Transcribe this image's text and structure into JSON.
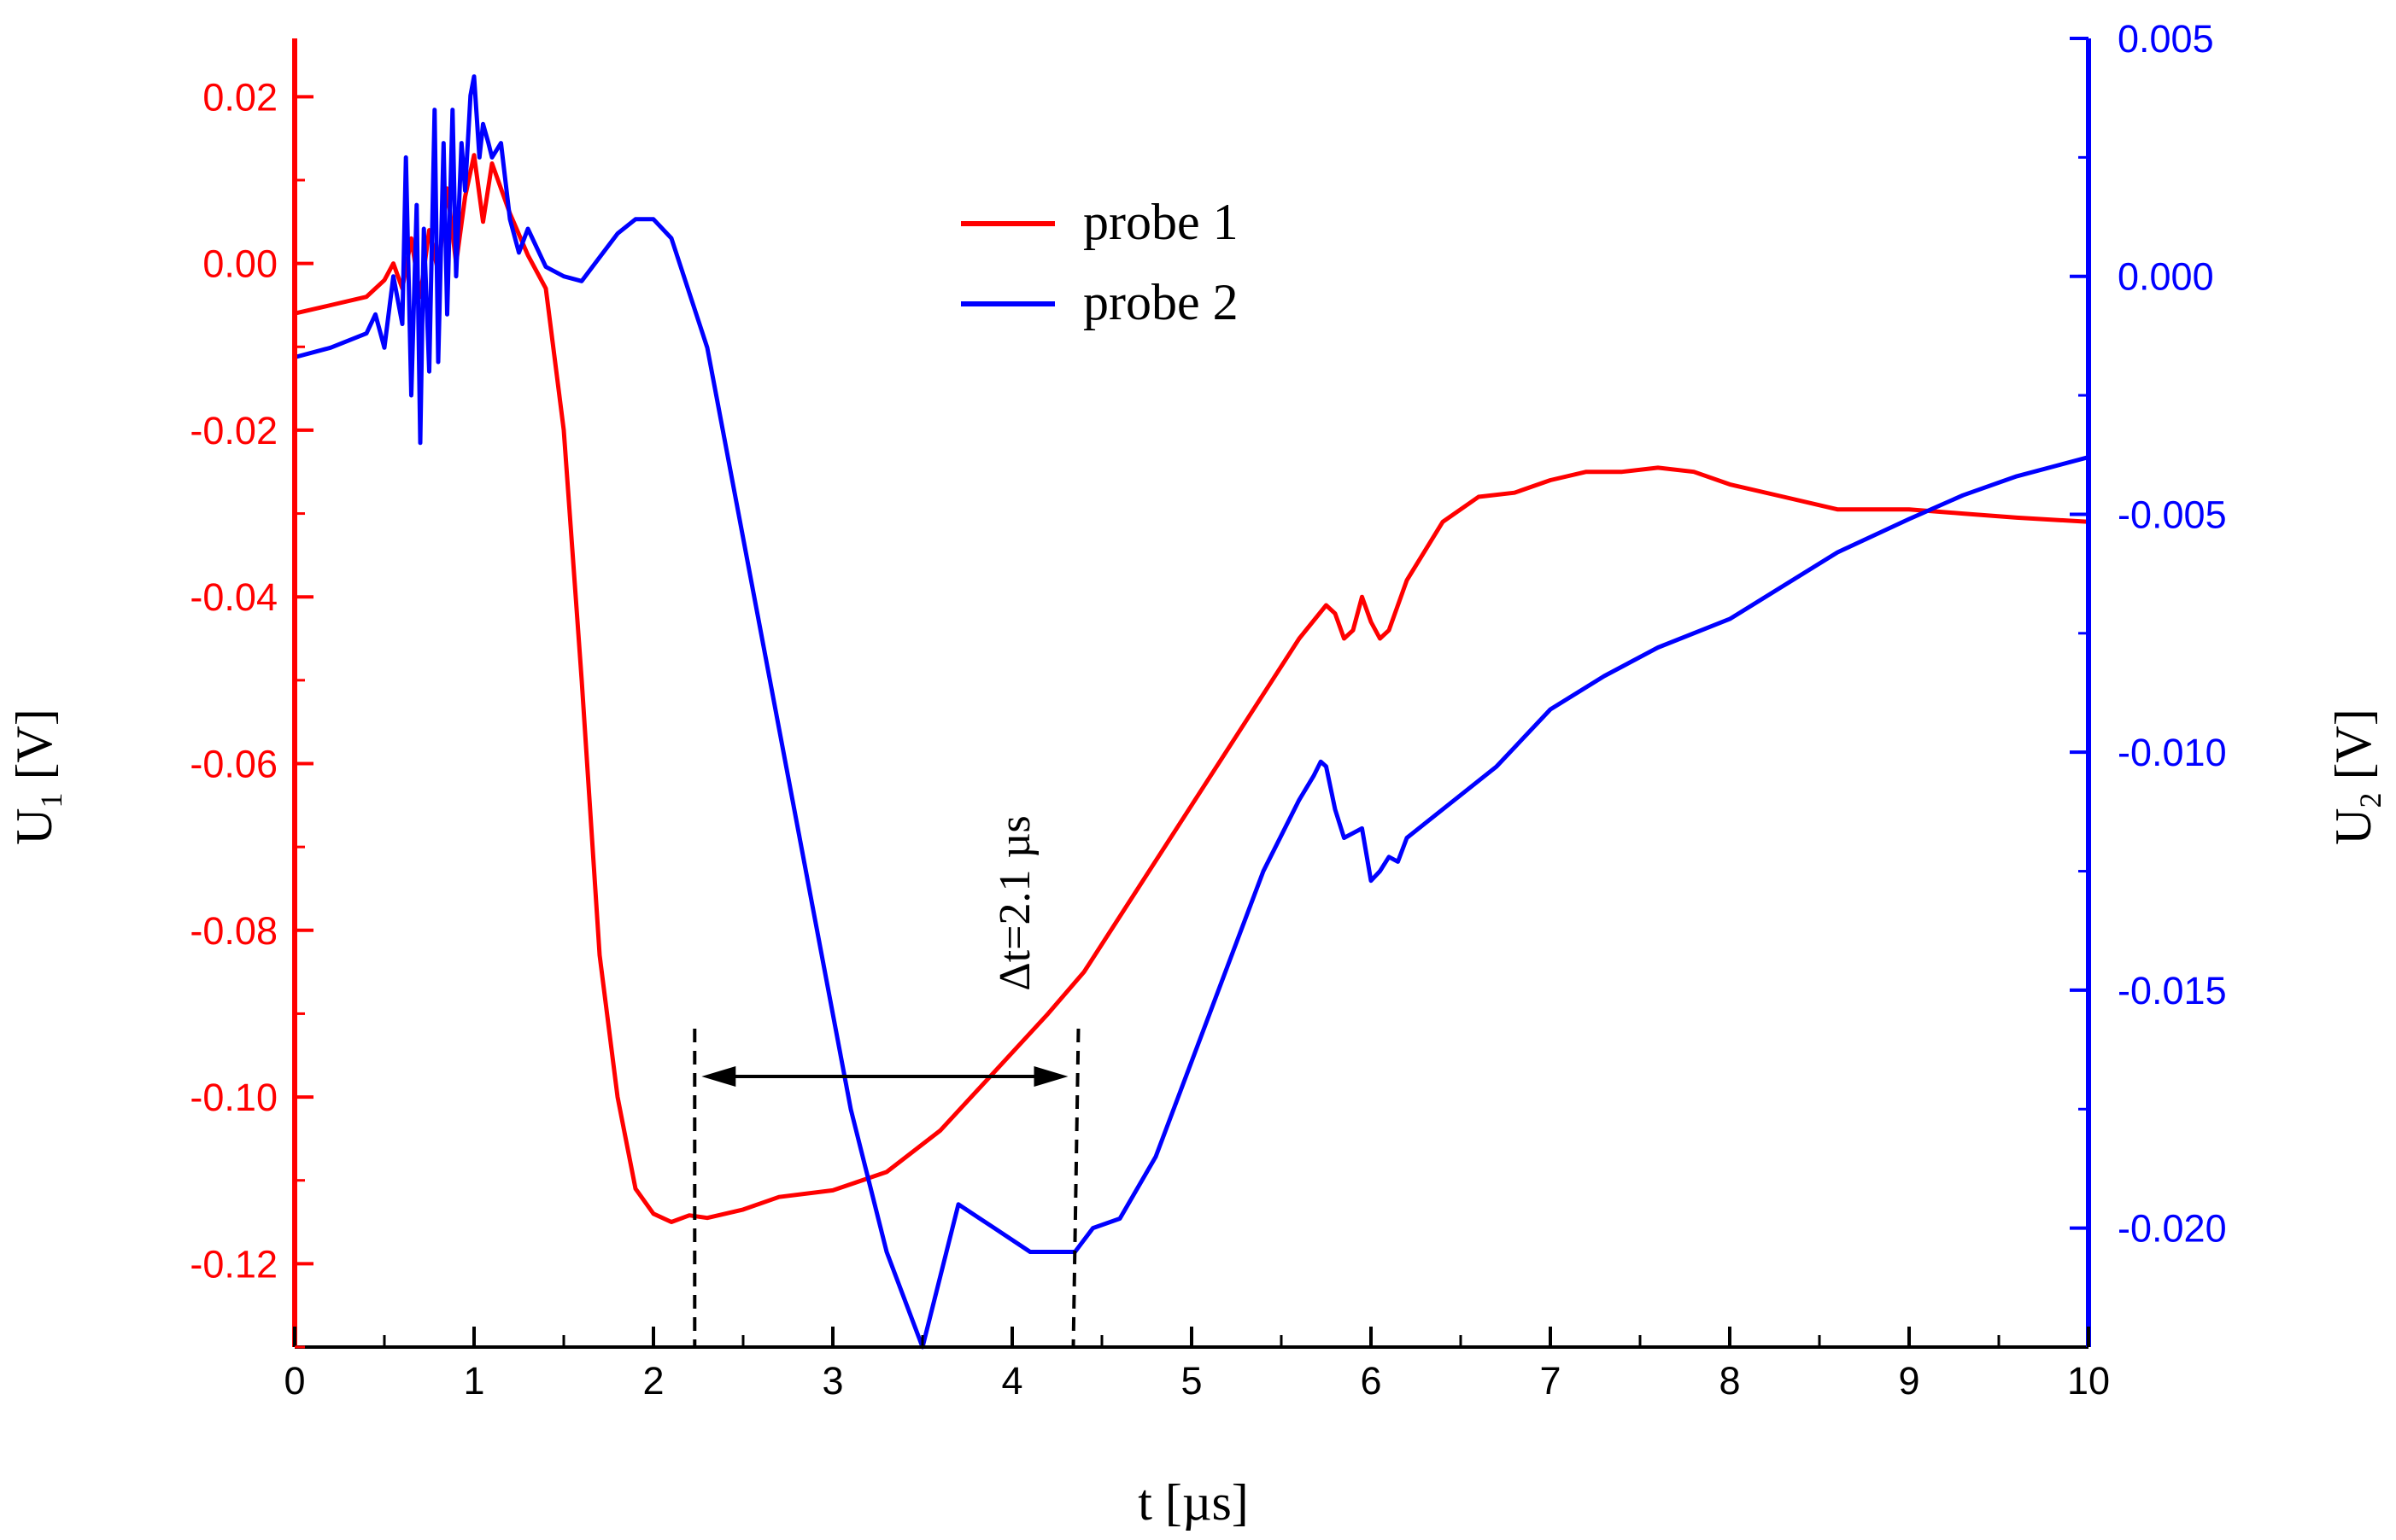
{
  "chart_data": {
    "type": "line",
    "x_axis": {
      "label": "t [µs]",
      "range": [
        0,
        10
      ],
      "ticks": [
        0,
        1,
        2,
        3,
        4,
        5,
        6,
        7,
        8,
        9,
        10
      ],
      "tick_labels": [
        "0",
        "1",
        "2",
        "3",
        "4",
        "5",
        "6",
        "7",
        "8",
        "9",
        "10"
      ]
    },
    "y_left": {
      "label_main": "U",
      "label_sub": "1",
      "label_unit": " [V]",
      "range": [
        -0.13,
        0.027
      ],
      "ticks": [
        0.02,
        0.0,
        -0.02,
        -0.04,
        -0.06,
        -0.08,
        -0.1,
        -0.12
      ],
      "tick_labels": [
        "0.02",
        "0.00",
        "-0.02",
        "-0.04",
        "-0.06",
        "-0.08",
        "-0.10",
        "-0.12"
      ],
      "color": "#ff0000"
    },
    "y_right": {
      "label_main": "U",
      "label_sub": "2",
      "label_unit": " [V]",
      "range": [
        -0.0225,
        0.005
      ],
      "ticks": [
        0.005,
        0.0,
        -0.005,
        -0.01,
        -0.015,
        -0.02
      ],
      "tick_labels": [
        "0.005",
        "0.000",
        "-0.005",
        "-0.010",
        "-0.015",
        "-0.020"
      ],
      "color": "#0000ff"
    },
    "series": [
      {
        "name": "probe 1",
        "axis": "left",
        "color": "#ff0000",
        "x": [
          0,
          0.2,
          0.4,
          0.5,
          0.55,
          0.6,
          0.65,
          0.7,
          0.75,
          0.8,
          0.85,
          0.9,
          0.95,
          1.0,
          1.05,
          1.1,
          1.15,
          1.2,
          1.3,
          1.4,
          1.5,
          1.6,
          1.7,
          1.8,
          1.9,
          2.0,
          2.1,
          2.2,
          2.3,
          2.5,
          2.7,
          3.0,
          3.3,
          3.6,
          3.9,
          4.2,
          4.4,
          4.7,
          5.0,
          5.3,
          5.6,
          5.75,
          5.8,
          5.85,
          5.9,
          5.95,
          6.0,
          6.05,
          6.1,
          6.2,
          6.4,
          6.6,
          6.8,
          7.0,
          7.2,
          7.4,
          7.6,
          7.8,
          8.0,
          8.3,
          8.6,
          9.0,
          9.3,
          9.6,
          10.0
        ],
        "y": [
          -0.006,
          -0.005,
          -0.004,
          -0.002,
          0.0,
          -0.003,
          0.003,
          -0.004,
          0.004,
          -0.001,
          0.009,
          0.0,
          0.008,
          0.013,
          0.005,
          0.012,
          0.009,
          0.006,
          0.001,
          -0.003,
          -0.02,
          -0.05,
          -0.083,
          -0.1,
          -0.111,
          -0.114,
          -0.115,
          -0.1142,
          -0.1145,
          -0.1135,
          -0.112,
          -0.1112,
          -0.109,
          -0.104,
          -0.097,
          -0.09,
          -0.085,
          -0.075,
          -0.065,
          -0.055,
          -0.045,
          -0.041,
          -0.042,
          -0.045,
          -0.044,
          -0.04,
          -0.043,
          -0.045,
          -0.044,
          -0.038,
          -0.031,
          -0.028,
          -0.0275,
          -0.026,
          -0.025,
          -0.025,
          -0.0245,
          -0.025,
          -0.0265,
          -0.028,
          -0.0295,
          -0.0295,
          -0.03,
          -0.0305,
          -0.031
        ]
      },
      {
        "name": "probe 2",
        "axis": "right",
        "color": "#0000ff",
        "x": [
          0,
          0.2,
          0.4,
          0.45,
          0.5,
          0.55,
          0.6,
          0.62,
          0.65,
          0.68,
          0.7,
          0.72,
          0.75,
          0.78,
          0.8,
          0.83,
          0.85,
          0.88,
          0.9,
          0.93,
          0.95,
          0.98,
          1.0,
          1.03,
          1.05,
          1.08,
          1.1,
          1.15,
          1.2,
          1.25,
          1.3,
          1.4,
          1.5,
          1.6,
          1.7,
          1.8,
          1.9,
          2.0,
          2.1,
          2.3,
          2.5,
          2.7,
          2.9,
          3.1,
          3.3,
          3.5,
          3.7,
          3.9,
          4.1,
          4.25,
          4.35,
          4.45,
          4.6,
          4.8,
          5.0,
          5.2,
          5.4,
          5.6,
          5.68,
          5.72,
          5.75,
          5.8,
          5.85,
          5.9,
          5.95,
          6.0,
          6.05,
          6.1,
          6.15,
          6.2,
          6.4,
          6.7,
          7.0,
          7.3,
          7.6,
          8.0,
          8.3,
          8.6,
          9.0,
          9.3,
          9.6,
          10.0
        ],
        "y": [
          -0.0017,
          -0.0015,
          -0.0012,
          -0.0008,
          -0.0015,
          0.0,
          -0.001,
          0.0025,
          -0.0025,
          0.0015,
          -0.0035,
          0.001,
          -0.002,
          0.0035,
          -0.0018,
          0.0028,
          -0.0008,
          0.0035,
          0.0,
          0.0028,
          0.0018,
          0.0038,
          0.0042,
          0.0025,
          0.0032,
          0.0028,
          0.0025,
          0.0028,
          0.0012,
          0.0005,
          0.001,
          0.0002,
          0.0,
          -0.0001,
          0.0004,
          0.0009,
          0.0012,
          0.0012,
          0.0008,
          -0.0015,
          -0.0055,
          -0.0095,
          -0.0135,
          -0.0175,
          -0.0205,
          -0.0225,
          -0.0195,
          -0.02,
          -0.0205,
          -0.0205,
          -0.0205,
          -0.02,
          -0.0198,
          -0.0185,
          -0.0165,
          -0.0145,
          -0.0125,
          -0.011,
          -0.0105,
          -0.0102,
          -0.0103,
          -0.0112,
          -0.0118,
          -0.0117,
          -0.0116,
          -0.0127,
          -0.0125,
          -0.0122,
          -0.0123,
          -0.0118,
          -0.0112,
          -0.0103,
          -0.0091,
          -0.0084,
          -0.0078,
          -0.0072,
          -0.0065,
          -0.0058,
          -0.0051,
          -0.0046,
          -0.0042,
          -0.0038
        ]
      }
    ],
    "annotation": {
      "text": "Δt=2.1 µs",
      "x_start": 2.23,
      "x_end": 4.35
    }
  }
}
